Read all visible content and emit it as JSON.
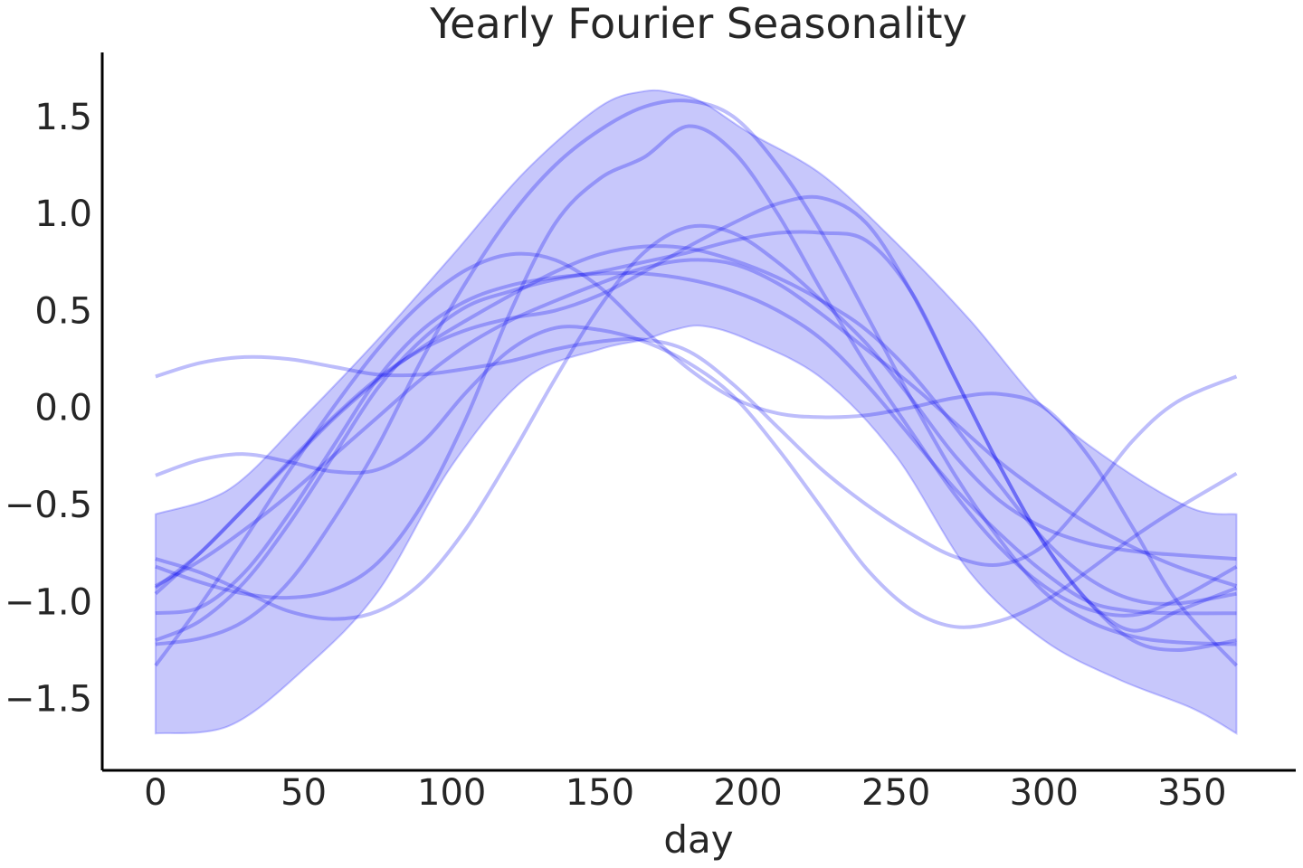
{
  "chart_data": {
    "type": "line",
    "title": "Yearly Fourier Seasonality",
    "xlabel": "day",
    "ylabel": "",
    "xlim": [
      -18,
      385
    ],
    "ylim": [
      -1.87,
      1.83
    ],
    "x_ticks": [
      0,
      50,
      100,
      150,
      200,
      250,
      300,
      350
    ],
    "x_tick_labels": [
      "0",
      "50",
      "100",
      "150",
      "200",
      "250",
      "300",
      "350"
    ],
    "y_ticks": [
      1.5,
      1.0,
      0.5,
      0.0,
      -0.5,
      -1.0,
      -1.5
    ],
    "y_tick_labels": [
      "1.5",
      "1.0",
      "0.5",
      "0.0",
      "−0.5",
      "−1.0",
      "−1.5"
    ],
    "grid": false,
    "colors": {
      "series": "#0000ee",
      "band": "#0000ee"
    },
    "band": {
      "name": "",
      "x": [
        0,
        25,
        50,
        75,
        100,
        125,
        150,
        165,
        175,
        185,
        200,
        225,
        250,
        275,
        300,
        325,
        350,
        365
      ],
      "lower": [
        -1.68,
        -1.64,
        -1.35,
        -0.95,
        -0.3,
        0.15,
        0.3,
        0.35,
        0.4,
        0.42,
        0.35,
        0.15,
        -0.25,
        -0.85,
        -1.2,
        -1.4,
        -1.55,
        -1.68
      ],
      "upper": [
        -0.55,
        -0.42,
        -0.05,
        0.35,
        0.78,
        1.22,
        1.55,
        1.63,
        1.62,
        1.57,
        1.42,
        1.2,
        0.85,
        0.45,
        0.0,
        -0.3,
        -0.52,
        -0.55
      ]
    },
    "x": [
      0,
      15,
      30,
      45,
      60,
      75,
      90,
      105,
      120,
      135,
      150,
      165,
      180,
      195,
      210,
      225,
      240,
      255,
      270,
      285,
      300,
      315,
      330,
      345,
      365
    ],
    "series": [
      {
        "values": [
          0.16,
          0.23,
          0.26,
          0.25,
          0.21,
          0.17,
          0.17,
          0.2,
          0.24,
          0.3,
          0.34,
          0.35,
          0.29,
          0.12,
          -0.1,
          -0.32,
          -0.5,
          -0.65,
          -0.77,
          -0.81,
          -0.71,
          -0.46,
          -0.17,
          0.03,
          0.16
        ]
      },
      {
        "values": [
          -0.35,
          -0.27,
          -0.24,
          -0.28,
          -0.33,
          -0.32,
          -0.18,
          0.08,
          0.3,
          0.41,
          0.4,
          0.34,
          0.23,
          0.06,
          -0.21,
          -0.52,
          -0.83,
          -1.04,
          -1.13,
          -1.1,
          -1.0,
          -0.84,
          -0.67,
          -0.52,
          -0.34
        ]
      },
      {
        "values": [
          -1.33,
          -1.02,
          -0.68,
          -0.33,
          0.0,
          0.3,
          0.54,
          0.71,
          0.79,
          0.76,
          0.62,
          0.4,
          0.2,
          0.05,
          -0.03,
          -0.05,
          -0.04,
          0.0,
          0.05,
          0.07,
          0.0,
          -0.25,
          -0.62,
          -1.0,
          -1.33
        ]
      },
      {
        "values": [
          -0.82,
          -0.9,
          -0.96,
          -0.98,
          -0.94,
          -0.8,
          -0.5,
          -0.05,
          0.5,
          0.95,
          1.18,
          1.29,
          1.45,
          1.32,
          1.0,
          0.6,
          0.22,
          -0.12,
          -0.45,
          -0.72,
          -0.92,
          -1.04,
          -1.07,
          -0.99,
          -0.82
        ]
      },
      {
        "values": [
          -1.22,
          -1.19,
          -1.1,
          -0.9,
          -0.58,
          -0.2,
          0.25,
          0.65,
          0.99,
          1.25,
          1.43,
          1.55,
          1.58,
          1.5,
          1.25,
          0.9,
          0.48,
          0.05,
          -0.35,
          -0.68,
          -0.95,
          -1.1,
          -1.18,
          -1.21,
          -1.22
        ]
      },
      {
        "values": [
          -0.93,
          -0.75,
          -0.52,
          -0.28,
          -0.05,
          0.15,
          0.3,
          0.4,
          0.46,
          0.5,
          0.58,
          0.7,
          0.83,
          0.95,
          1.05,
          1.08,
          0.95,
          0.6,
          0.15,
          -0.3,
          -0.7,
          -1.0,
          -1.15,
          -1.05,
          -0.93
        ]
      },
      {
        "values": [
          -1.06,
          -1.03,
          -0.85,
          -0.55,
          -0.2,
          0.15,
          0.4,
          0.55,
          0.63,
          0.67,
          0.69,
          0.69,
          0.66,
          0.6,
          0.5,
          0.35,
          0.12,
          -0.15,
          -0.42,
          -0.65,
          -0.85,
          -1.0,
          -1.05,
          -1.06,
          -1.06
        ]
      },
      {
        "values": [
          -0.78,
          -0.85,
          -0.95,
          -1.05,
          -1.09,
          -1.05,
          -0.9,
          -0.62,
          -0.25,
          0.15,
          0.52,
          0.8,
          0.93,
          0.9,
          0.75,
          0.55,
          0.33,
          0.05,
          -0.25,
          -0.48,
          -0.62,
          -0.7,
          -0.74,
          -0.76,
          -0.78
        ]
      },
      {
        "values": [
          -0.96,
          -0.75,
          -0.52,
          -0.29,
          -0.06,
          0.14,
          0.31,
          0.45,
          0.58,
          0.7,
          0.79,
          0.83,
          0.82,
          0.76,
          0.67,
          0.55,
          0.4,
          0.18,
          -0.1,
          -0.4,
          -0.68,
          -0.88,
          -0.99,
          -1.01,
          -0.96
        ]
      },
      {
        "values": [
          -1.2,
          -1.1,
          -0.9,
          -0.6,
          -0.25,
          0.1,
          0.35,
          0.52,
          0.6,
          0.66,
          0.7,
          0.75,
          0.8,
          0.86,
          0.9,
          0.9,
          0.86,
          0.6,
          0.15,
          -0.3,
          -0.7,
          -1.0,
          -1.2,
          -1.25,
          -1.2
        ]
      },
      {
        "values": [
          -0.92,
          -0.79,
          -0.63,
          -0.45,
          -0.25,
          -0.05,
          0.15,
          0.32,
          0.45,
          0.55,
          0.64,
          0.72,
          0.76,
          0.74,
          0.64,
          0.48,
          0.3,
          0.12,
          -0.08,
          -0.28,
          -0.45,
          -0.6,
          -0.72,
          -0.82,
          -0.92
        ]
      }
    ]
  }
}
